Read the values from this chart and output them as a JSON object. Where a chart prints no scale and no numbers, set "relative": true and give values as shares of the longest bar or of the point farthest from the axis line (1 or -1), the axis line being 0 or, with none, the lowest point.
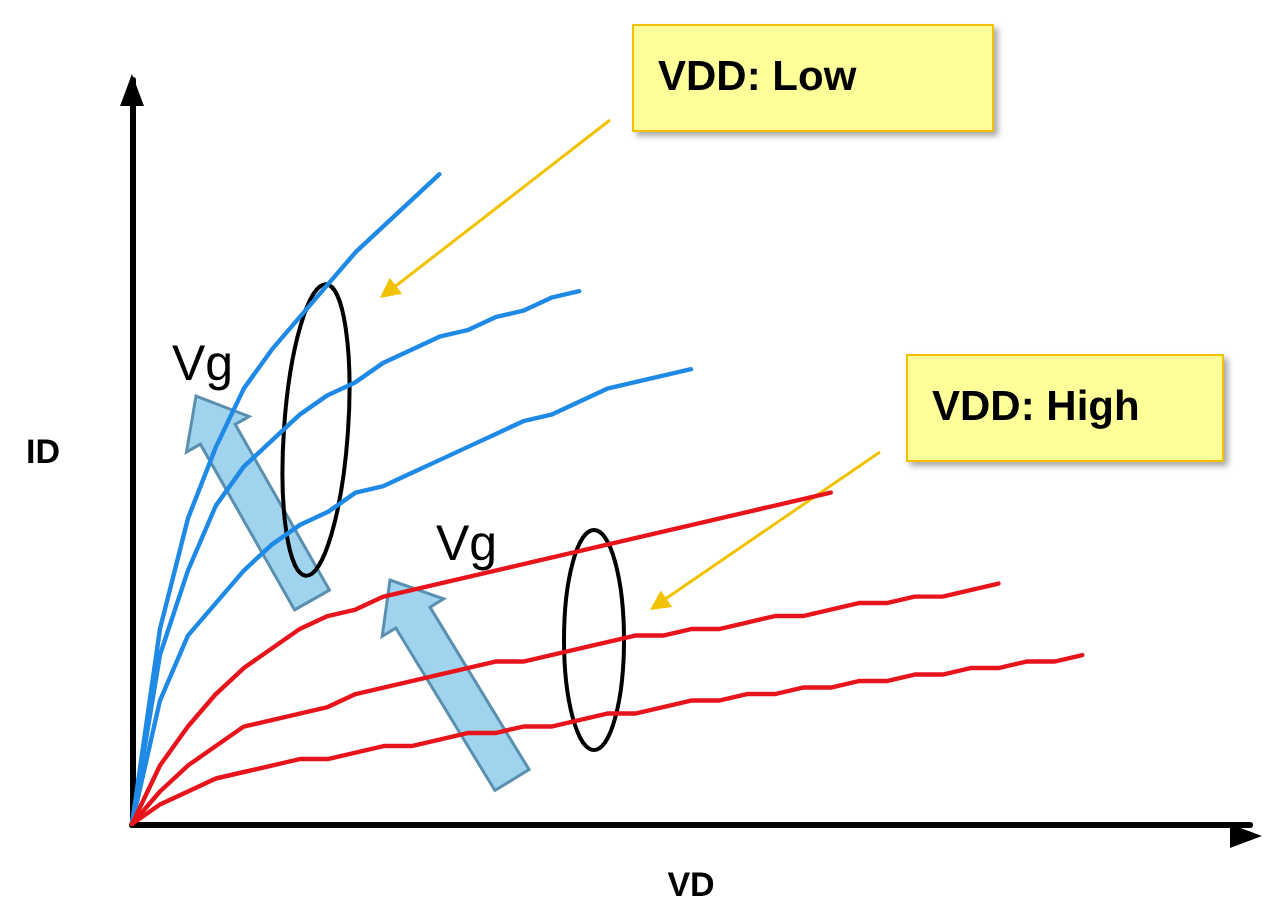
{
  "chart_data": {
    "type": "line",
    "relative": true,
    "xlabel": "VD",
    "ylabel": "ID",
    "marker": "none",
    "line_style": "solid",
    "annotations": [
      "VDD: Low",
      "VDD: High",
      "Vg",
      "Vg"
    ],
    "categories": [
      null,
      null,
      null,
      null,
      null,
      null,
      null,
      null,
      null,
      null,
      null,
      null,
      null,
      null,
      null,
      null,
      null,
      null,
      null,
      null,
      null,
      null,
      null,
      null,
      null,
      null,
      null,
      null,
      null,
      null,
      null,
      null,
      null,
      null,
      null,
      null,
      null,
      null,
      null,
      null,
      null
    ],
    "series": [
      {
        "color": "#1e8ae6",
        "values": [
          0,
          0.3,
          0.47,
          0.58,
          0.67,
          0.73,
          0.78,
          0.83,
          0.88,
          0.92,
          0.96,
          1,
          null,
          null,
          null,
          null,
          null,
          null,
          null,
          null,
          null,
          null,
          null,
          null,
          null,
          null,
          null,
          null,
          null,
          null,
          null,
          null,
          null,
          null,
          null,
          null,
          null,
          null,
          null,
          null,
          null
        ]
      },
      {
        "color": "#1e8ae6",
        "values": [
          0,
          0.26,
          0.39,
          0.49,
          0.55,
          0.59,
          0.63,
          0.66,
          0.68,
          0.71,
          0.73,
          0.75,
          0.76,
          0.78,
          0.79,
          0.81,
          0.82,
          null,
          null,
          null,
          null,
          null,
          null,
          null,
          null,
          null,
          null,
          null,
          null,
          null,
          null,
          null,
          null,
          null,
          null,
          null,
          null,
          null,
          null,
          null,
          null
        ]
      },
      {
        "color": "#1e8ae6",
        "values": [
          0,
          0.19,
          0.29,
          0.34,
          0.39,
          0.43,
          0.46,
          0.48,
          0.51,
          0.52,
          0.54,
          0.56,
          0.58,
          0.6,
          0.62,
          0.63,
          0.65,
          0.67,
          0.68,
          0.69,
          0.7,
          null,
          null,
          null,
          null,
          null,
          null,
          null,
          null,
          null,
          null,
          null,
          null,
          null,
          null,
          null,
          null,
          null,
          null,
          null,
          null
        ]
      },
      {
        "color": "#e8141b",
        "values": [
          0,
          0.09,
          0.15,
          0.2,
          0.24,
          0.27,
          0.3,
          0.32,
          0.33,
          0.35,
          0.36,
          0.37,
          0.38,
          0.39,
          0.4,
          0.41,
          0.42,
          0.43,
          0.44,
          0.45,
          0.46,
          0.47,
          0.48,
          0.49,
          0.5,
          0.51,
          null,
          null,
          null,
          null,
          null,
          null,
          null,
          null,
          null,
          null,
          null,
          null,
          null,
          null,
          null
        ]
      },
      {
        "color": "#e8141b",
        "values": [
          0,
          0.05,
          0.09,
          0.12,
          0.15,
          0.16,
          0.17,
          0.18,
          0.2,
          0.21,
          0.22,
          0.23,
          0.24,
          0.25,
          0.25,
          0.26,
          0.27,
          0.28,
          0.29,
          0.29,
          0.3,
          0.3,
          0.31,
          0.32,
          0.32,
          0.33,
          0.34,
          0.34,
          0.35,
          0.35,
          0.36,
          0.37,
          null,
          null,
          null,
          null,
          null,
          null,
          null,
          null,
          null
        ]
      },
      {
        "color": "#e8141b",
        "values": [
          0,
          0.03,
          0.05,
          0.07,
          0.08,
          0.09,
          0.1,
          0.1,
          0.11,
          0.12,
          0.12,
          0.13,
          0.14,
          0.14,
          0.15,
          0.15,
          0.16,
          0.17,
          0.17,
          0.18,
          0.19,
          0.19,
          0.2,
          0.2,
          0.21,
          0.21,
          0.22,
          0.22,
          0.23,
          0.23,
          0.24,
          0.24,
          0.25,
          0.25,
          0.26,
          null,
          null,
          null,
          null,
          null,
          null
        ]
      }
    ]
  }
}
